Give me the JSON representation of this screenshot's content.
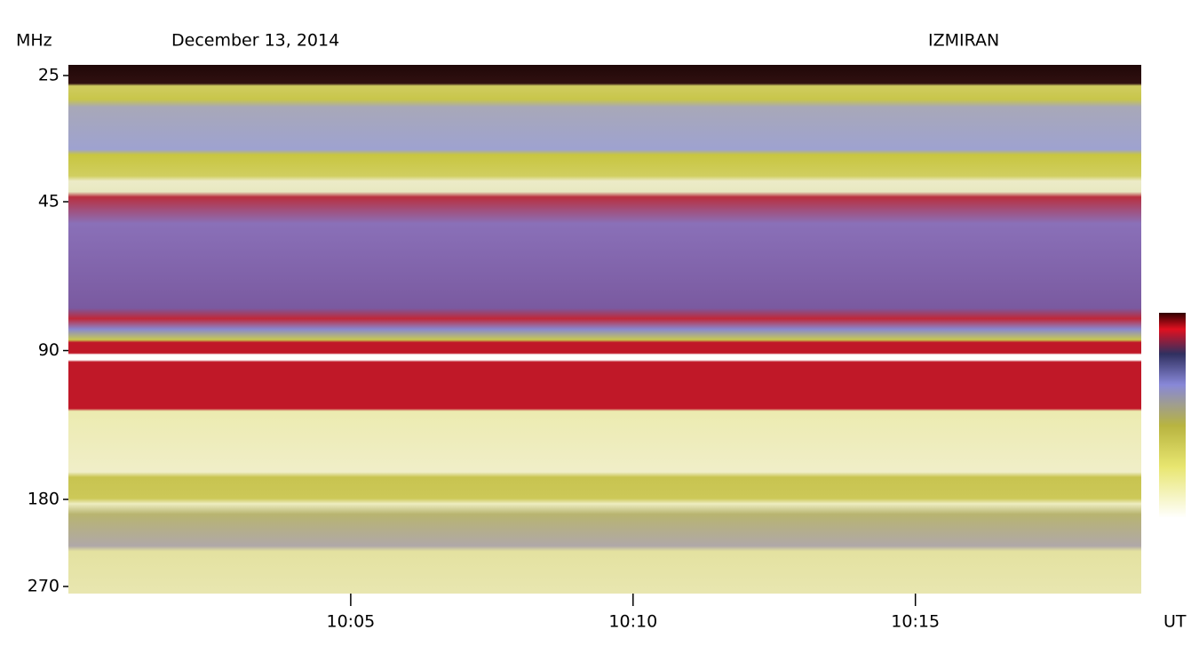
{
  "chart_data": {
    "type": "spectrogram",
    "title": "December 13, 2014",
    "source": "IZMIRAN",
    "y_label": "MHz",
    "x_label": "UT",
    "y_log": true,
    "y_inverted": true,
    "ylim": [
      25,
      270
    ],
    "yticks": [
      25,
      45,
      90,
      180,
      270
    ],
    "xlim": [
      "10:00",
      "10:19"
    ],
    "xticks": [
      "10:05",
      "10:10",
      "10:15"
    ]
  }
}
